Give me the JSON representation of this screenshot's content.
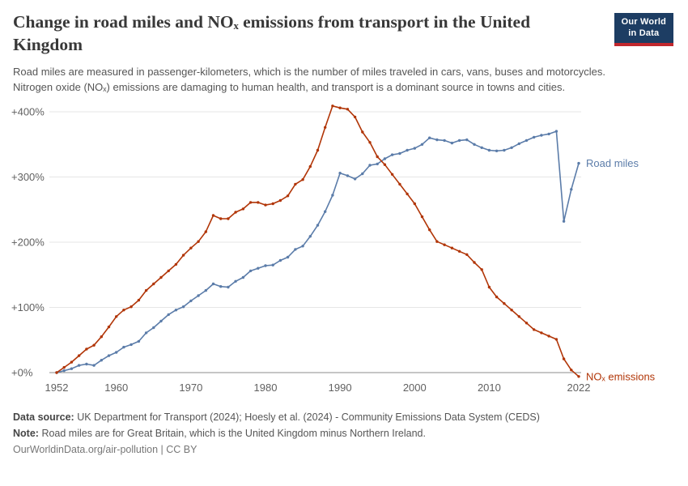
{
  "header": {
    "title": "Change in road miles and NOₓ emissions from transport in the United Kingdom",
    "subtitle": "Road miles are measured in passenger-kilometers, which is the number of miles traveled in cars, vans, buses and motorcycles. Nitrogen oxide (NOₓ) emissions are damaging to human health, and transport is a dominant source in towns and cities.",
    "logo": {
      "line1": "Our World",
      "line2": "in Data"
    }
  },
  "chart_data": {
    "type": "line",
    "title": "Change in road miles and NOₓ emissions from transport in the United Kingdom",
    "xlabel": "",
    "ylabel": "",
    "ylim": [
      -20,
      420
    ],
    "grid": true,
    "legend_position": "end-of-line",
    "yticks": [
      0,
      100,
      200,
      300,
      400
    ],
    "ytick_labels": [
      "+0%",
      "+100%",
      "+200%",
      "+300%",
      "+400%"
    ],
    "xticks": [
      1952,
      1960,
      1970,
      1980,
      1990,
      2000,
      2010,
      2022
    ],
    "x": [
      1952,
      1953,
      1954,
      1955,
      1956,
      1957,
      1958,
      1959,
      1960,
      1961,
      1962,
      1963,
      1964,
      1965,
      1966,
      1967,
      1968,
      1969,
      1970,
      1971,
      1972,
      1973,
      1974,
      1975,
      1976,
      1977,
      1978,
      1979,
      1980,
      1981,
      1982,
      1983,
      1984,
      1985,
      1986,
      1987,
      1988,
      1989,
      1990,
      1991,
      1992,
      1993,
      1994,
      1995,
      1996,
      1997,
      1998,
      1999,
      2000,
      2001,
      2002,
      2003,
      2004,
      2005,
      2006,
      2007,
      2008,
      2009,
      2010,
      2011,
      2012,
      2013,
      2014,
      2015,
      2016,
      2017,
      2018,
      2019,
      2020,
      2021,
      2022
    ],
    "series": [
      {
        "name": "Road miles",
        "color": "#5b7ca9",
        "values": [
          0,
          3,
          6,
          11,
          13,
          11,
          19,
          26,
          31,
          39,
          43,
          48,
          61,
          69,
          79,
          89,
          96,
          101,
          110,
          118,
          126,
          136,
          132,
          131,
          140,
          146,
          156,
          160,
          164,
          165,
          172,
          177,
          189,
          194,
          209,
          226,
          247,
          272,
          306,
          302,
          297,
          305,
          318,
          320,
          328,
          334,
          336,
          341,
          344,
          350,
          360,
          357,
          356,
          352,
          356,
          357,
          350,
          345,
          341,
          340,
          341,
          345,
          351,
          356,
          361,
          364,
          366,
          370,
          232,
          281,
          321
        ]
      },
      {
        "name": "NOₓ emissions",
        "color": "#b13507",
        "values": [
          0,
          8,
          16,
          26,
          36,
          42,
          55,
          70,
          86,
          96,
          101,
          111,
          126,
          136,
          146,
          156,
          166,
          180,
          191,
          201,
          216,
          241,
          236,
          236,
          246,
          251,
          261,
          261,
          257,
          259,
          264,
          271,
          289,
          296,
          316,
          341,
          376,
          409,
          406,
          404,
          392,
          369,
          353,
          331,
          319,
          304,
          289,
          274,
          259,
          239,
          219,
          201,
          196,
          191,
          186,
          181,
          169,
          158,
          131,
          116,
          106,
          96,
          86,
          76,
          66,
          61,
          56,
          51,
          21,
          4,
          -6
        ]
      }
    ]
  },
  "footer": {
    "source_label": "Data source:",
    "source_text": "UK Department for Transport (2024); Hoesly et al. (2024) - Community Emissions Data System (CEDS)",
    "note_label": "Note:",
    "note_text": "Road miles are for Great Britain, which is the United Kingdom minus Northern Ireland.",
    "attribution": "OurWorldinData.org/air-pollution | CC BY"
  }
}
